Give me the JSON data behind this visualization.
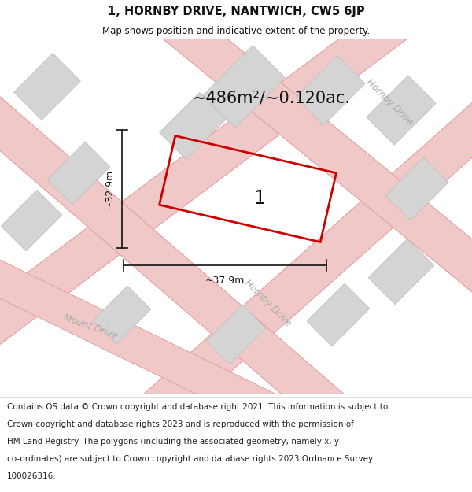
{
  "title": "1, HORNBY DRIVE, NANTWICH, CW5 6JP",
  "subtitle": "Map shows position and indicative extent of the property.",
  "area_label": "~486m²/~0.120ac.",
  "plot_number": "1",
  "width_label": "~37.9m",
  "height_label": "~32.9m",
  "footer_lines": [
    "Contains OS data © Crown copyright and database right 2021. This information is subject to",
    "Crown copyright and database rights 2023 and is reproduced with the permission of",
    "HM Land Registry. The polygons (including the associated geometry, namely x, y",
    "co-ordinates) are subject to Crown copyright and database rights 2023 Ordnance Survey",
    "100026316."
  ],
  "map_bg": "#f7f3f3",
  "road_fill": "#f0c8c8",
  "road_edge": "#e0a0a0",
  "building_fill": "#d4d4d4",
  "building_edge": "#bbbbbb",
  "plot_edge_color": "#cc0000",
  "title_color": "#111111",
  "street_label_color": "#aaaaaa",
  "dim_color": "#111111",
  "footer_color": "#222222",
  "figsize": [
    6.0,
    6.25
  ],
  "dpi": 100
}
